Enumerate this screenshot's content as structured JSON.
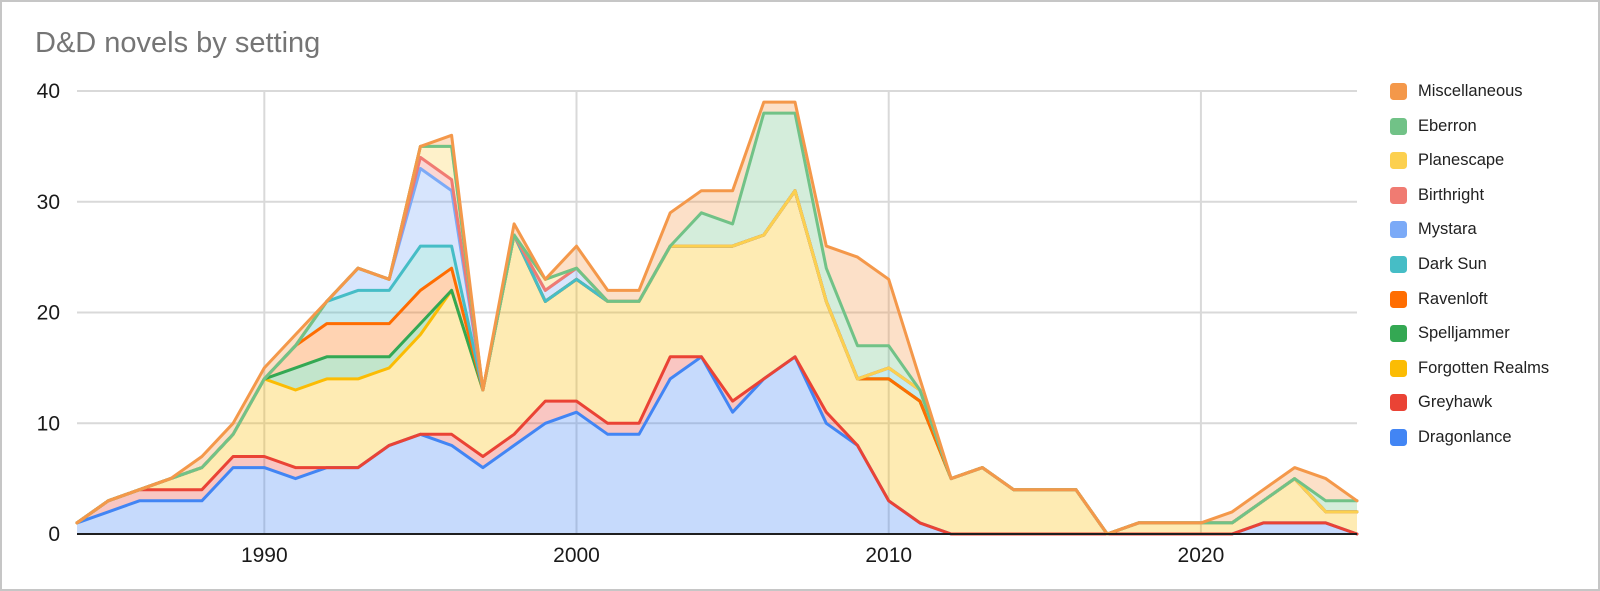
{
  "title": "D&D novels by setting",
  "chart_data": {
    "type": "area",
    "stacked": true,
    "title": "D&D novels by setting",
    "xlabel": "",
    "ylabel": "",
    "xlim": [
      1984,
      2025
    ],
    "ylim": [
      0,
      40
    ],
    "x_ticks": [
      1990,
      2000,
      2010,
      2020
    ],
    "y_ticks": [
      0,
      10,
      20,
      30,
      40
    ],
    "grid": true,
    "legend_position": "right",
    "legend_order": "top of stack first",
    "fill_opacity": 0.3,
    "x": [
      1984,
      1985,
      1986,
      1987,
      1988,
      1989,
      1990,
      1991,
      1992,
      1993,
      1994,
      1995,
      1996,
      1997,
      1998,
      1999,
      2000,
      2001,
      2002,
      2003,
      2004,
      2005,
      2006,
      2007,
      2008,
      2009,
      2010,
      2011,
      2012,
      2013,
      2014,
      2015,
      2016,
      2017,
      2018,
      2019,
      2020,
      2021,
      2022,
      2023,
      2024,
      2025
    ],
    "series": [
      {
        "name": "Dragonlance",
        "color": "#4285F4",
        "values": [
          1,
          2,
          3,
          3,
          3,
          6,
          6,
          5,
          6,
          6,
          8,
          9,
          8,
          6,
          8,
          10,
          11,
          9,
          9,
          14,
          16,
          11,
          14,
          16,
          10,
          8,
          3,
          1,
          0,
          0,
          0,
          0,
          0,
          0,
          0,
          0,
          0,
          0,
          1,
          1,
          1,
          0
        ]
      },
      {
        "name": "Greyhawk",
        "color": "#EA4335",
        "values": [
          0,
          1,
          1,
          1,
          1,
          1,
          1,
          1,
          0,
          0,
          0,
          0,
          1,
          1,
          1,
          2,
          1,
          1,
          1,
          2,
          0,
          1,
          0,
          0,
          1,
          0,
          0,
          0,
          0,
          0,
          0,
          0,
          0,
          0,
          0,
          0,
          0,
          0,
          0,
          0,
          0,
          0
        ]
      },
      {
        "name": "Forgotten Realms",
        "color": "#FBBC04",
        "values": [
          0,
          0,
          0,
          1,
          2,
          2,
          7,
          7,
          8,
          8,
          7,
          9,
          13,
          6,
          18,
          9,
          11,
          11,
          11,
          10,
          10,
          14,
          13,
          15,
          10,
          6,
          11,
          11,
          5,
          6,
          4,
          4,
          4,
          0,
          1,
          1,
          1,
          1,
          2,
          4,
          1,
          2
        ]
      },
      {
        "name": "Spelljammer",
        "color": "#34A853",
        "values": [
          0,
          0,
          0,
          0,
          0,
          0,
          0,
          2,
          2,
          2,
          1,
          1,
          0,
          0,
          0,
          0,
          0,
          0,
          0,
          0,
          0,
          0,
          0,
          0,
          0,
          0,
          0,
          0,
          0,
          0,
          0,
          0,
          0,
          0,
          0,
          0,
          0,
          0,
          0,
          0,
          0,
          0
        ]
      },
      {
        "name": "Ravenloft",
        "color": "#FF6D01",
        "values": [
          0,
          0,
          0,
          0,
          0,
          0,
          0,
          2,
          3,
          3,
          3,
          3,
          2,
          0,
          0,
          0,
          0,
          0,
          0,
          0,
          0,
          0,
          0,
          0,
          0,
          0,
          0,
          0,
          0,
          0,
          0,
          0,
          0,
          0,
          0,
          0,
          0,
          0,
          0,
          0,
          0,
          0
        ]
      },
      {
        "name": "Dark Sun",
        "color": "#46BDC6",
        "values": [
          0,
          0,
          0,
          0,
          0,
          0,
          0,
          0,
          2,
          3,
          3,
          4,
          2,
          0,
          0,
          0,
          0,
          0,
          0,
          0,
          0,
          0,
          0,
          0,
          0,
          0,
          1,
          1,
          0,
          0,
          0,
          0,
          0,
          0,
          0,
          0,
          0,
          0,
          0,
          0,
          0,
          0
        ]
      },
      {
        "name": "Mystara",
        "color": "#7BAAF7",
        "values": [
          0,
          0,
          0,
          0,
          0,
          0,
          0,
          0,
          0,
          2,
          1,
          7,
          5,
          0,
          0,
          1,
          1,
          0,
          0,
          0,
          0,
          0,
          0,
          0,
          0,
          0,
          0,
          0,
          0,
          0,
          0,
          0,
          0,
          0,
          0,
          0,
          0,
          0,
          0,
          0,
          0,
          0
        ]
      },
      {
        "name": "Birthright",
        "color": "#F07B72",
        "values": [
          0,
          0,
          0,
          0,
          0,
          0,
          0,
          0,
          0,
          0,
          0,
          1,
          1,
          0,
          0,
          0,
          0,
          0,
          0,
          0,
          0,
          0,
          0,
          0,
          0,
          0,
          0,
          0,
          0,
          0,
          0,
          0,
          0,
          0,
          0,
          0,
          0,
          0,
          0,
          0,
          0,
          0
        ]
      },
      {
        "name": "Planescape",
        "color": "#FCD04F",
        "values": [
          0,
          0,
          0,
          0,
          0,
          0,
          0,
          0,
          0,
          0,
          0,
          1,
          3,
          0,
          0,
          1,
          0,
          0,
          0,
          0,
          0,
          0,
          0,
          0,
          0,
          0,
          0,
          0,
          0,
          0,
          0,
          0,
          0,
          0,
          0,
          0,
          0,
          0,
          0,
          0,
          0,
          0
        ]
      },
      {
        "name": "Eberron",
        "color": "#71C287",
        "values": [
          0,
          0,
          0,
          0,
          0,
          0,
          0,
          0,
          0,
          0,
          0,
          0,
          0,
          0,
          0,
          0,
          0,
          0,
          0,
          0,
          3,
          2,
          11,
          7,
          3,
          3,
          2,
          0,
          0,
          0,
          0,
          0,
          0,
          0,
          0,
          0,
          0,
          0,
          0,
          0,
          1,
          1
        ]
      },
      {
        "name": "Miscellaneous",
        "color": "#F4984A",
        "values": [
          0,
          0,
          0,
          0,
          1,
          1,
          1,
          1,
          0,
          0,
          0,
          0,
          1,
          0,
          1,
          0,
          2,
          1,
          1,
          3,
          2,
          3,
          1,
          1,
          2,
          8,
          6,
          1,
          0,
          0,
          0,
          0,
          0,
          0,
          0,
          0,
          0,
          1,
          1,
          1,
          2,
          0
        ]
      }
    ]
  },
  "colors": {
    "title_text": "#757575",
    "axis_text": "#1a1a1a",
    "legend_text": "#212121",
    "gridline": "#d9d9d9",
    "axis_line": "#1f1f1f",
    "background": "#ffffff",
    "frame_border": "#c6c6c6"
  }
}
